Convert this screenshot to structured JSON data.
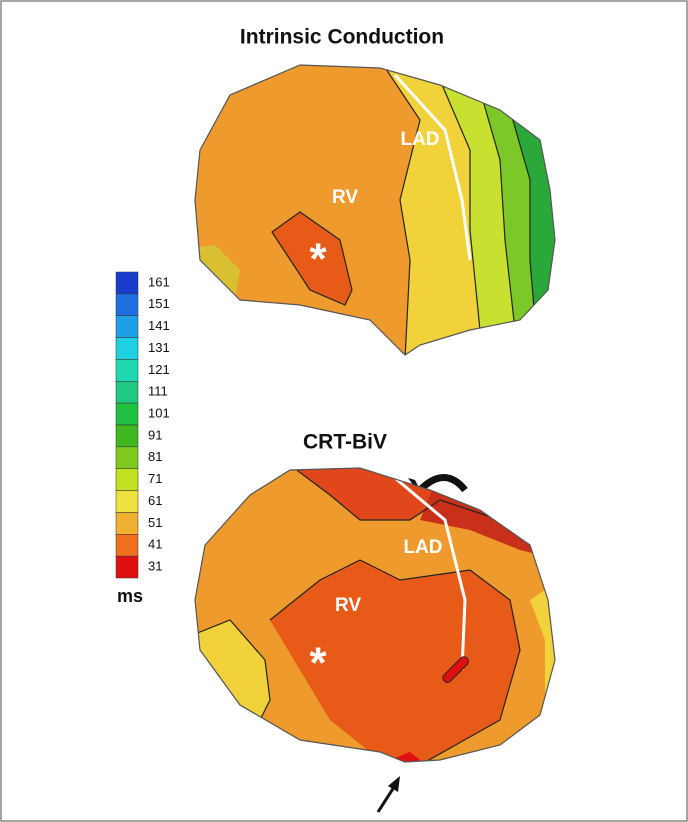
{
  "panels": [
    {
      "title": "Intrinsic Conduction",
      "labels": [
        "RV",
        "LAD",
        "*"
      ]
    },
    {
      "title": "CRT-BiV",
      "labels": [
        "RV",
        "LAD",
        "*"
      ]
    }
  ],
  "colorbar": {
    "unit": "ms",
    "ticks": [
      161,
      151,
      141,
      131,
      121,
      111,
      101,
      91,
      81,
      71,
      61,
      51,
      41,
      31
    ],
    "colors": [
      "#1a3ccc",
      "#1e6fe0",
      "#1ea0e8",
      "#1ed0e0",
      "#20d8b0",
      "#20c880",
      "#20c040",
      "#40b820",
      "#80c820",
      "#c0e020",
      "#f0e040",
      "#f0b030",
      "#f07020",
      "#e01010"
    ]
  }
}
